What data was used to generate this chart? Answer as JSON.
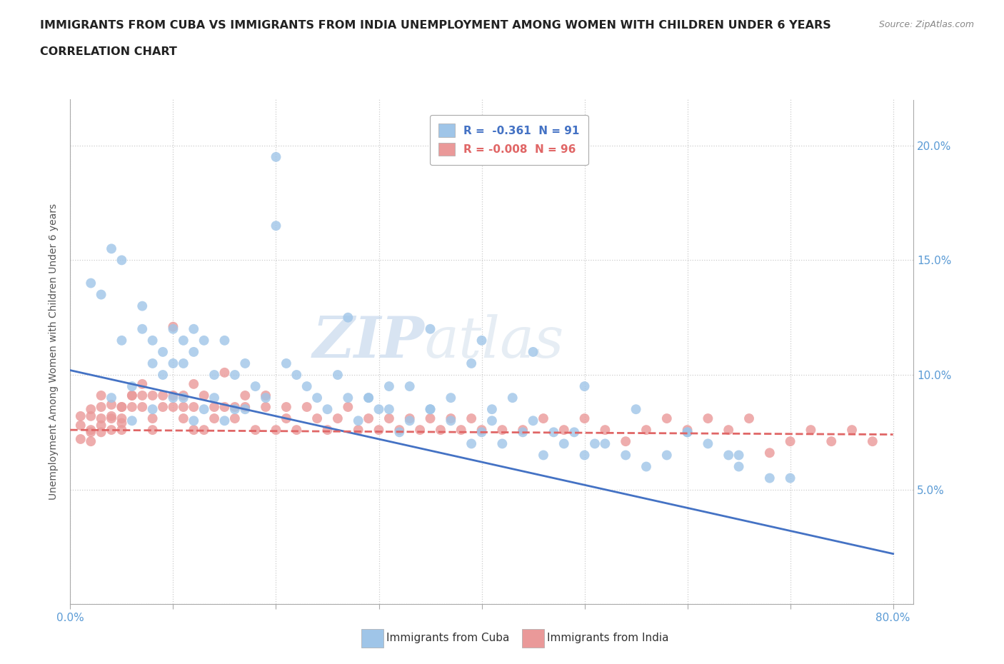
{
  "title_line1": "IMMIGRANTS FROM CUBA VS IMMIGRANTS FROM INDIA UNEMPLOYMENT AMONG WOMEN WITH CHILDREN UNDER 6 YEARS",
  "title_line2": "CORRELATION CHART",
  "source": "Source: ZipAtlas.com",
  "ylabel": "Unemployment Among Women with Children Under 6 years",
  "xlim": [
    0.0,
    0.82
  ],
  "ylim": [
    0.0,
    0.22
  ],
  "xticks": [
    0.0,
    0.1,
    0.2,
    0.3,
    0.4,
    0.5,
    0.6,
    0.7,
    0.8
  ],
  "xticklabels": [
    "0.0%",
    "",
    "",
    "",
    "",
    "",
    "",
    "",
    "80.0%"
  ],
  "yticks": [
    0.0,
    0.05,
    0.1,
    0.15,
    0.2
  ],
  "yticklabels": [
    "",
    "5.0%",
    "10.0%",
    "15.0%",
    "20.0%"
  ],
  "legend_r_cuba": "-0.361",
  "legend_n_cuba": "91",
  "legend_r_india": "-0.008",
  "legend_n_india": "96",
  "cuba_color": "#9fc5e8",
  "india_color": "#ea9999",
  "cuba_line_color": "#4472c4",
  "india_line_color": "#e06666",
  "watermark_left": "ZIP",
  "watermark_right": "atlas",
  "cuba_scatter_x": [
    0.02,
    0.03,
    0.04,
    0.04,
    0.05,
    0.05,
    0.06,
    0.06,
    0.07,
    0.07,
    0.08,
    0.08,
    0.08,
    0.09,
    0.09,
    0.1,
    0.1,
    0.1,
    0.11,
    0.11,
    0.11,
    0.12,
    0.12,
    0.12,
    0.13,
    0.13,
    0.14,
    0.14,
    0.15,
    0.15,
    0.16,
    0.16,
    0.17,
    0.17,
    0.18,
    0.19,
    0.2,
    0.2,
    0.21,
    0.22,
    0.23,
    0.24,
    0.25,
    0.26,
    0.27,
    0.28,
    0.29,
    0.3,
    0.31,
    0.32,
    0.33,
    0.35,
    0.37,
    0.39,
    0.4,
    0.41,
    0.42,
    0.44,
    0.46,
    0.48,
    0.5,
    0.52,
    0.54,
    0.56,
    0.58,
    0.6,
    0.62,
    0.64,
    0.65,
    0.68,
    0.7,
    0.27,
    0.29,
    0.31,
    0.33,
    0.35,
    0.37,
    0.39,
    0.41,
    0.43,
    0.45,
    0.47,
    0.49,
    0.51,
    0.35,
    0.4,
    0.45,
    0.5,
    0.55,
    0.6,
    0.65
  ],
  "cuba_scatter_y": [
    0.14,
    0.135,
    0.155,
    0.09,
    0.15,
    0.115,
    0.095,
    0.08,
    0.13,
    0.12,
    0.115,
    0.105,
    0.085,
    0.11,
    0.1,
    0.12,
    0.105,
    0.09,
    0.115,
    0.105,
    0.09,
    0.12,
    0.11,
    0.08,
    0.115,
    0.085,
    0.1,
    0.09,
    0.115,
    0.08,
    0.1,
    0.085,
    0.105,
    0.085,
    0.095,
    0.09,
    0.195,
    0.165,
    0.105,
    0.1,
    0.095,
    0.09,
    0.085,
    0.1,
    0.09,
    0.08,
    0.09,
    0.085,
    0.095,
    0.075,
    0.08,
    0.085,
    0.08,
    0.07,
    0.075,
    0.08,
    0.07,
    0.075,
    0.065,
    0.07,
    0.065,
    0.07,
    0.065,
    0.06,
    0.065,
    0.075,
    0.07,
    0.065,
    0.06,
    0.055,
    0.055,
    0.125,
    0.09,
    0.085,
    0.095,
    0.085,
    0.09,
    0.105,
    0.085,
    0.09,
    0.08,
    0.075,
    0.075,
    0.07,
    0.12,
    0.115,
    0.11,
    0.095,
    0.085,
    0.075,
    0.065
  ],
  "india_scatter_x": [
    0.01,
    0.01,
    0.01,
    0.02,
    0.02,
    0.02,
    0.02,
    0.03,
    0.03,
    0.03,
    0.03,
    0.04,
    0.04,
    0.04,
    0.05,
    0.05,
    0.05,
    0.05,
    0.06,
    0.06,
    0.06,
    0.07,
    0.07,
    0.07,
    0.08,
    0.08,
    0.08,
    0.09,
    0.09,
    0.1,
    0.1,
    0.1,
    0.11,
    0.11,
    0.11,
    0.12,
    0.12,
    0.12,
    0.13,
    0.13,
    0.14,
    0.14,
    0.15,
    0.15,
    0.16,
    0.16,
    0.17,
    0.17,
    0.18,
    0.19,
    0.19,
    0.2,
    0.21,
    0.21,
    0.22,
    0.23,
    0.24,
    0.25,
    0.26,
    0.27,
    0.28,
    0.29,
    0.3,
    0.31,
    0.32,
    0.33,
    0.34,
    0.35,
    0.36,
    0.37,
    0.38,
    0.39,
    0.4,
    0.42,
    0.44,
    0.46,
    0.48,
    0.5,
    0.52,
    0.54,
    0.56,
    0.58,
    0.6,
    0.62,
    0.64,
    0.66,
    0.68,
    0.7,
    0.72,
    0.74,
    0.76,
    0.78,
    0.02,
    0.03,
    0.04,
    0.05
  ],
  "india_scatter_y": [
    0.072,
    0.078,
    0.082,
    0.085,
    0.071,
    0.076,
    0.082,
    0.075,
    0.081,
    0.086,
    0.091,
    0.076,
    0.081,
    0.087,
    0.076,
    0.086,
    0.081,
    0.086,
    0.086,
    0.091,
    0.091,
    0.086,
    0.091,
    0.096,
    0.091,
    0.081,
    0.076,
    0.086,
    0.091,
    0.086,
    0.091,
    0.121,
    0.081,
    0.086,
    0.091,
    0.096,
    0.086,
    0.076,
    0.091,
    0.076,
    0.086,
    0.081,
    0.086,
    0.101,
    0.086,
    0.081,
    0.091,
    0.086,
    0.076,
    0.086,
    0.091,
    0.076,
    0.081,
    0.086,
    0.076,
    0.086,
    0.081,
    0.076,
    0.081,
    0.086,
    0.076,
    0.081,
    0.076,
    0.081,
    0.076,
    0.081,
    0.076,
    0.081,
    0.076,
    0.081,
    0.076,
    0.081,
    0.076,
    0.076,
    0.076,
    0.081,
    0.076,
    0.081,
    0.076,
    0.071,
    0.076,
    0.081,
    0.076,
    0.081,
    0.076,
    0.081,
    0.066,
    0.071,
    0.076,
    0.071,
    0.076,
    0.071,
    0.075,
    0.078,
    0.082,
    0.079
  ]
}
